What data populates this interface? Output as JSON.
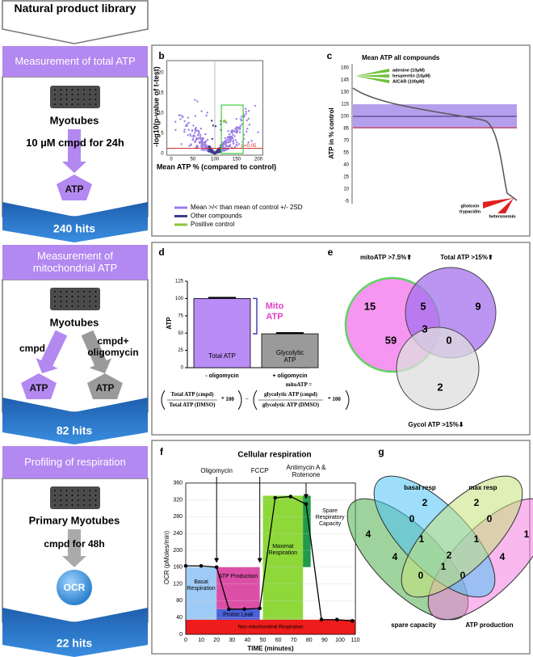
{
  "panel_a": {
    "label": "a",
    "source": "Natural product library",
    "stages": [
      {
        "title": "Measurement of total ATP",
        "cells": "Myotubes",
        "treatment": "10 µM cmpd for 24h",
        "readout": "ATP",
        "hits": "240 hits"
      },
      {
        "title": "Measurement of mitochondrial ATP",
        "cells": "Myotubes",
        "treatment": "cmpd",
        "treatment2": "cmpd+ oligomycin",
        "readout": "ATP",
        "readout2": "ATP",
        "hits": "82 hits"
      },
      {
        "title": "Profiling of respiration",
        "cells": "Primary Myotubes",
        "treatment": "cmpd for 48h",
        "readout": "OCR",
        "hits": "22 hits"
      }
    ]
  },
  "panel_b": {
    "label": "b",
    "x_label": "Mean ATP % (compared to control)",
    "y_label": "-log10(p-value of t-test)",
    "xticks": [
      0,
      50,
      100,
      150,
      200
    ],
    "yticks": [
      0,
      5,
      10,
      15,
      20
    ],
    "threshold_label": "p=0.05",
    "legend": [
      {
        "text": "Mean >/< than mean of control +/- 2SD",
        "color": "#9b7fe6"
      },
      {
        "text": "Other compounds",
        "color": "#3f3d8a"
      },
      {
        "text": "Positive control",
        "color": "#8dc63f"
      }
    ]
  },
  "panel_c": {
    "label": "c",
    "title": "Mean ATP all compounds",
    "y_label": "ATP in % control",
    "yticks": [
      160,
      145,
      130,
      115,
      100,
      85,
      70,
      55,
      40,
      25,
      10,
      -5
    ],
    "top_compounds": [
      "adenine (10µM)",
      "hesperetin (10µM)",
      "AICAR (100µM)"
    ],
    "bottom_compounds": [
      "gliotoxin",
      "trypacidin",
      "heteronemin"
    ]
  },
  "panel_d": {
    "label": "d",
    "y_label": "ATP",
    "yticks": [
      0,
      25,
      50,
      75,
      100,
      125
    ],
    "categories": [
      "- oligomycin",
      "+ oligomycin"
    ],
    "bar_labels": [
      "Total ATP",
      "Glycolytic ATP"
    ],
    "values": [
      100,
      49
    ],
    "colors": [
      "#b98cf6",
      "#9a9a9a"
    ],
    "bracket_label": "Mito ATP",
    "formula": {
      "lhs": "mitoATP =",
      "total_num": "Total ATP (cmpd)",
      "total_den": "Total ATP (DMSO)",
      "glyco_num": "glycolytic ATP (cmpd)",
      "glyco_den": "glycolytic ATP (DMSO)",
      "factor": "* 100",
      "minus": "−"
    }
  },
  "panel_e": {
    "label": "e",
    "sets": [
      "mitoATP >7.5%⬆",
      "Total ATP >15%⬆",
      "Gycol ATP >15%⬇"
    ],
    "counts": [
      15,
      5,
      9,
      59,
      3,
      0,
      2
    ]
  },
  "panel_f": {
    "label": "f",
    "title": "Cellular respiration",
    "x_label": "TIME (minutes)",
    "y_label": "OCR (pMoles/min)",
    "xticks": [
      0,
      10,
      20,
      30,
      40,
      50,
      60,
      70,
      80,
      90,
      100,
      110
    ],
    "yticks": [
      0,
      40,
      80,
      120,
      160,
      200,
      240,
      280,
      320,
      360
    ],
    "injections": [
      "Oligomycin",
      "FCCP",
      "Antimycin A & Rotenone"
    ],
    "regions": [
      "Basal Respiration",
      "ATP Production",
      "Proton Leak",
      "Maximal Respiration",
      "Spare Respiratory Capacity",
      "Non-mitochondrial Respiration"
    ],
    "x": [
      0,
      10,
      20,
      28,
      38,
      48,
      58,
      68,
      78,
      88,
      98,
      108
    ],
    "y": [
      163,
      163,
      160,
      60,
      60,
      62,
      325,
      328,
      310,
      35,
      35,
      32
    ]
  },
  "panel_g": {
    "label": "g",
    "sets": [
      "basal resp",
      "max resp",
      "spare capacity",
      "ATP production"
    ],
    "counts": [
      2,
      2,
      0,
      0,
      4,
      1,
      1,
      1,
      4,
      2,
      4,
      0,
      1,
      0
    ]
  }
}
